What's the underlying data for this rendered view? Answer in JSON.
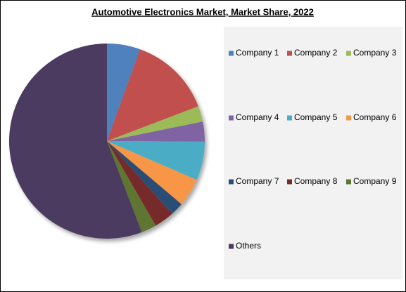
{
  "chart_data": {
    "type": "pie",
    "title": "Automotive Electronics Market, Market Share, 2022",
    "categories": [
      "Company 1",
      "Company 2",
      "Company 3",
      "Company 4",
      "Company 5",
      "Company 6",
      "Company 7",
      "Company 8",
      "Company 9",
      "Others"
    ],
    "values": [
      5.5,
      13.7,
      2.6,
      3.3,
      6.4,
      4.7,
      2.2,
      3.3,
      2.5,
      55.8
    ],
    "colors": [
      "#4f81bd",
      "#c0504d",
      "#9bbb59",
      "#8064a2",
      "#4bacc6",
      "#f79646",
      "#2c4d75",
      "#772c2a",
      "#5f7530",
      "#4b3a61"
    ],
    "legend": "right"
  }
}
